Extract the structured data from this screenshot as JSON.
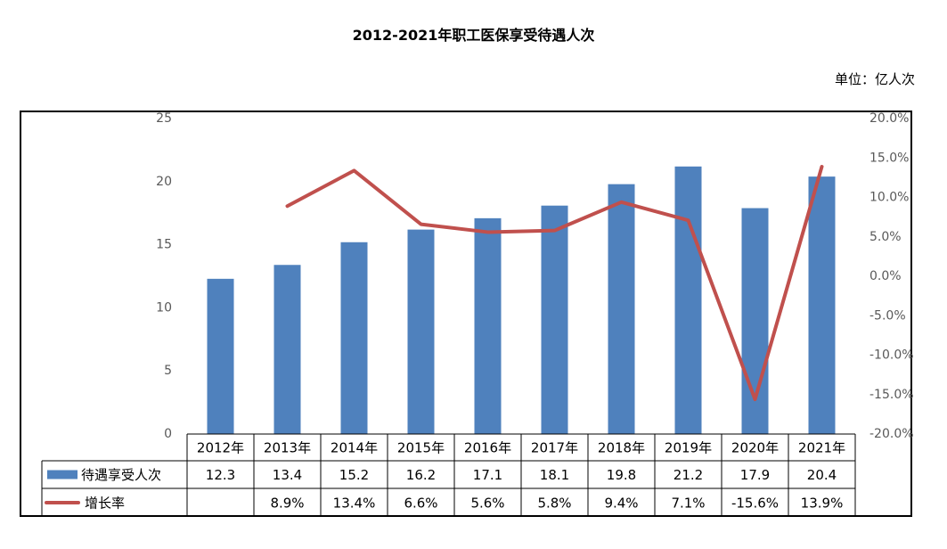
{
  "title": "2012-2021年职工医保享受待遇人次",
  "unit_label": "单位：亿人次",
  "chart_data": {
    "type": "bar",
    "categories": [
      "2012年",
      "2013年",
      "2014年",
      "2015年",
      "2016年",
      "2017年",
      "2018年",
      "2019年",
      "2020年",
      "2021年"
    ],
    "series": [
      {
        "name": "待遇享受人次",
        "type": "bar",
        "color": "#4F81BD",
        "values": [
          12.3,
          13.4,
          15.2,
          16.2,
          17.1,
          18.1,
          19.8,
          21.2,
          17.9,
          20.4
        ],
        "labels": [
          "12.3",
          "13.4",
          "15.2",
          "16.2",
          "17.1",
          "18.1",
          "19.8",
          "21.2",
          "17.9",
          "20.4"
        ]
      },
      {
        "name": "增长率",
        "type": "line",
        "color": "#C0504D",
        "axis": "right",
        "values": [
          null,
          8.9,
          13.4,
          6.6,
          5.6,
          5.8,
          9.4,
          7.1,
          -15.6,
          13.9
        ],
        "labels": [
          "",
          "8.9%",
          "13.4%",
          "6.6%",
          "5.6%",
          "5.8%",
          "9.4%",
          "7.1%",
          "-15.6%",
          "13.9%"
        ]
      }
    ],
    "ylim": [
      0,
      25
    ],
    "y_ticks": [
      "0",
      "5",
      "10",
      "15",
      "20",
      "25"
    ],
    "y2lim": [
      -20,
      20
    ],
    "y2_ticks": [
      "-20.0%",
      "-15.0%",
      "-10.0%",
      "-5.0%",
      "0.0%",
      "5.0%",
      "10.0%",
      "15.0%",
      "20.0%"
    ],
    "grid": false,
    "legend": "data-table"
  }
}
